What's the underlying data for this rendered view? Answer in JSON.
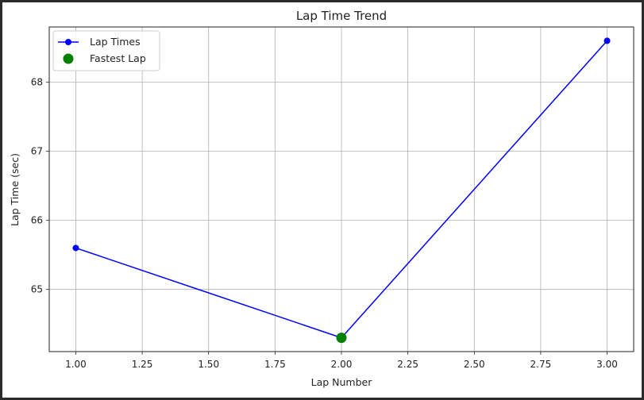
{
  "chart_data": {
    "type": "line",
    "title": "Lap Time Trend",
    "xlabel": "Lap Number",
    "ylabel": "Lap Time (sec)",
    "xlim": [
      0.9,
      3.1
    ],
    "ylim": [
      64.1,
      68.8
    ],
    "x_ticks": [
      "1.00",
      "1.25",
      "1.50",
      "1.75",
      "2.00",
      "2.25",
      "2.50",
      "2.75",
      "3.00"
    ],
    "y_ticks": [
      "65",
      "66",
      "67",
      "68"
    ],
    "grid": true,
    "legend_position": "top-left",
    "series": [
      {
        "name": "Lap Times",
        "style": "line-with-markers",
        "color": "#0000ff",
        "x": [
          1,
          2,
          3
        ],
        "y": [
          65.6,
          64.3,
          68.6
        ]
      },
      {
        "name": "Fastest Lap",
        "style": "scatter",
        "color": "#008000",
        "x": [
          2
        ],
        "y": [
          64.3
        ]
      }
    ]
  }
}
